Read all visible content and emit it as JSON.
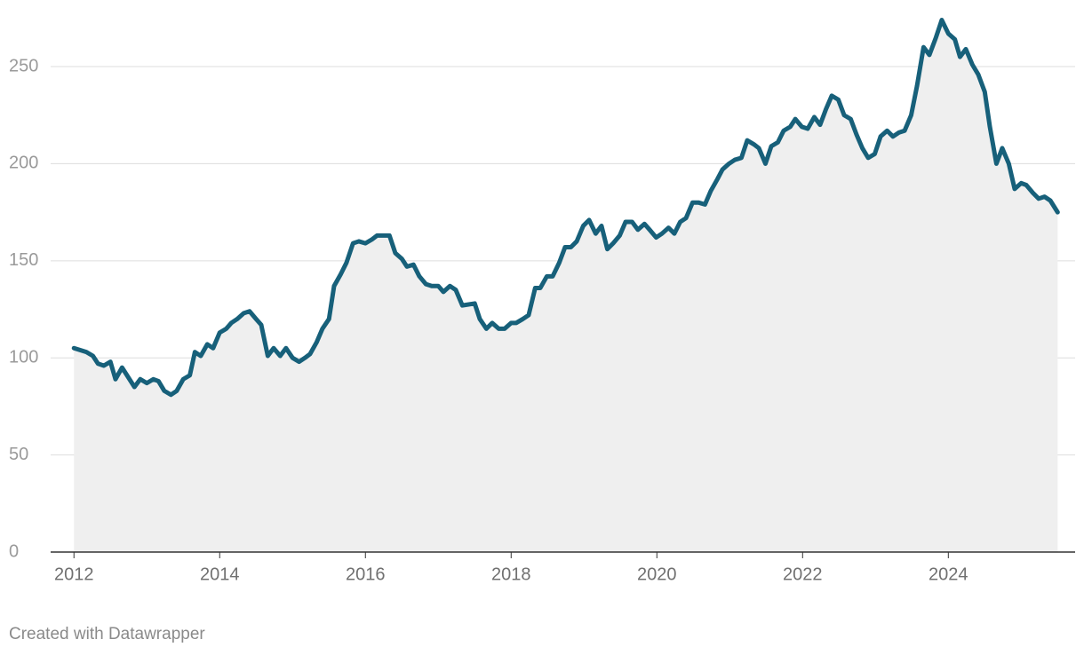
{
  "chart_data": {
    "type": "area_line",
    "color": "#17607a",
    "area_color": "#efefef",
    "x": [
      2012.0,
      2012.17,
      2012.26,
      2012.33,
      2012.41,
      2012.5,
      2012.57,
      2012.66,
      2012.83,
      2012.91,
      2013.0,
      2013.09,
      2013.16,
      2013.24,
      2013.33,
      2013.41,
      2013.5,
      2013.59,
      2013.66,
      2013.74,
      2013.83,
      2013.91,
      2014.0,
      2014.09,
      2014.16,
      2014.24,
      2014.33,
      2014.41,
      2014.5,
      2014.57,
      2014.66,
      2014.74,
      2014.83,
      2014.91,
      2015.0,
      2015.09,
      2015.17,
      2015.24,
      2015.33,
      2015.41,
      2015.5,
      2015.57,
      2015.66,
      2015.74,
      2015.83,
      2015.91,
      2016.0,
      2016.09,
      2016.16,
      2016.24,
      2016.33,
      2016.41,
      2016.5,
      2016.57,
      2016.66,
      2016.74,
      2016.83,
      2016.91,
      2017.0,
      2017.07,
      2017.16,
      2017.24,
      2017.33,
      2017.5,
      2017.57,
      2017.66,
      2017.74,
      2017.83,
      2017.91,
      2018.0,
      2018.07,
      2018.16,
      2018.24,
      2018.33,
      2018.4,
      2018.49,
      2018.57,
      2018.66,
      2018.74,
      2018.82,
      2018.9,
      2018.99,
      2019.07,
      2019.16,
      2019.24,
      2019.32,
      2019.4,
      2019.49,
      2019.57,
      2019.66,
      2019.74,
      2019.83,
      2019.9,
      2019.99,
      2020.07,
      2020.16,
      2020.24,
      2020.32,
      2020.4,
      2020.49,
      2020.57,
      2020.66,
      2020.74,
      2020.83,
      2020.9,
      2020.99,
      2021.07,
      2021.16,
      2021.24,
      2021.33,
      2021.4,
      2021.49,
      2021.57,
      2021.66,
      2021.74,
      2021.83,
      2021.9,
      2021.99,
      2022.07,
      2022.16,
      2022.24,
      2022.32,
      2022.4,
      2022.49,
      2022.57,
      2022.66,
      2022.74,
      2022.82,
      2022.9,
      2022.99,
      2023.07,
      2023.16,
      2023.24,
      2023.32,
      2023.4,
      2023.49,
      2023.57,
      2023.66,
      2023.74,
      2023.83,
      2023.91,
      2024.0,
      2024.09,
      2024.16,
      2024.24,
      2024.33,
      2024.41,
      2024.5,
      2024.57,
      2024.66,
      2024.74,
      2024.83,
      2024.91,
      2025.0,
      2025.07,
      2025.16,
      2025.24,
      2025.32,
      2025.4,
      2025.5
    ],
    "values": [
      105,
      103,
      101,
      97,
      96,
      98,
      89,
      95,
      85,
      89,
      87,
      89,
      88,
      83,
      81,
      83,
      89,
      91,
      103,
      101,
      107,
      105,
      113,
      115,
      118,
      120,
      123,
      124,
      120,
      117,
      101,
      105,
      101,
      105,
      100,
      98,
      100,
      102,
      108,
      115,
      120,
      137,
      143,
      149,
      159,
      160,
      159,
      161,
      163,
      163,
      163,
      154,
      151,
      147,
      148,
      142,
      138,
      137,
      137,
      134,
      137,
      135,
      127,
      128,
      120,
      115,
      118,
      115,
      115,
      118,
      118,
      120,
      122,
      136,
      136,
      142,
      142,
      149,
      157,
      157,
      160,
      168,
      171,
      164,
      168,
      156,
      159,
      163,
      170,
      170,
      166,
      169,
      166,
      162,
      164,
      167,
      164,
      170,
      172,
      180,
      180,
      179,
      186,
      192,
      197,
      200,
      202,
      203,
      212,
      210,
      208,
      200,
      209,
      211,
      217,
      219,
      223,
      219,
      218,
      224,
      220,
      228,
      235,
      233,
      225,
      223,
      215,
      208,
      203,
      205,
      214,
      217,
      214,
      216,
      217,
      225,
      240,
      260,
      256,
      265,
      274,
      267,
      264,
      255,
      259,
      251,
      246,
      237,
      219,
      200,
      208,
      200,
      187,
      190,
      189,
      185,
      182,
      183,
      181,
      175
    ],
    "xlim": [
      2011.68,
      2025.74
    ],
    "xticks": [
      2012,
      2014,
      2016,
      2018,
      2020,
      2022,
      2024
    ],
    "ylim": [
      0,
      280
    ],
    "yticks": [
      0,
      50,
      100,
      150,
      200,
      250
    ],
    "grid": true
  },
  "footer": "Created with Datawrapper"
}
